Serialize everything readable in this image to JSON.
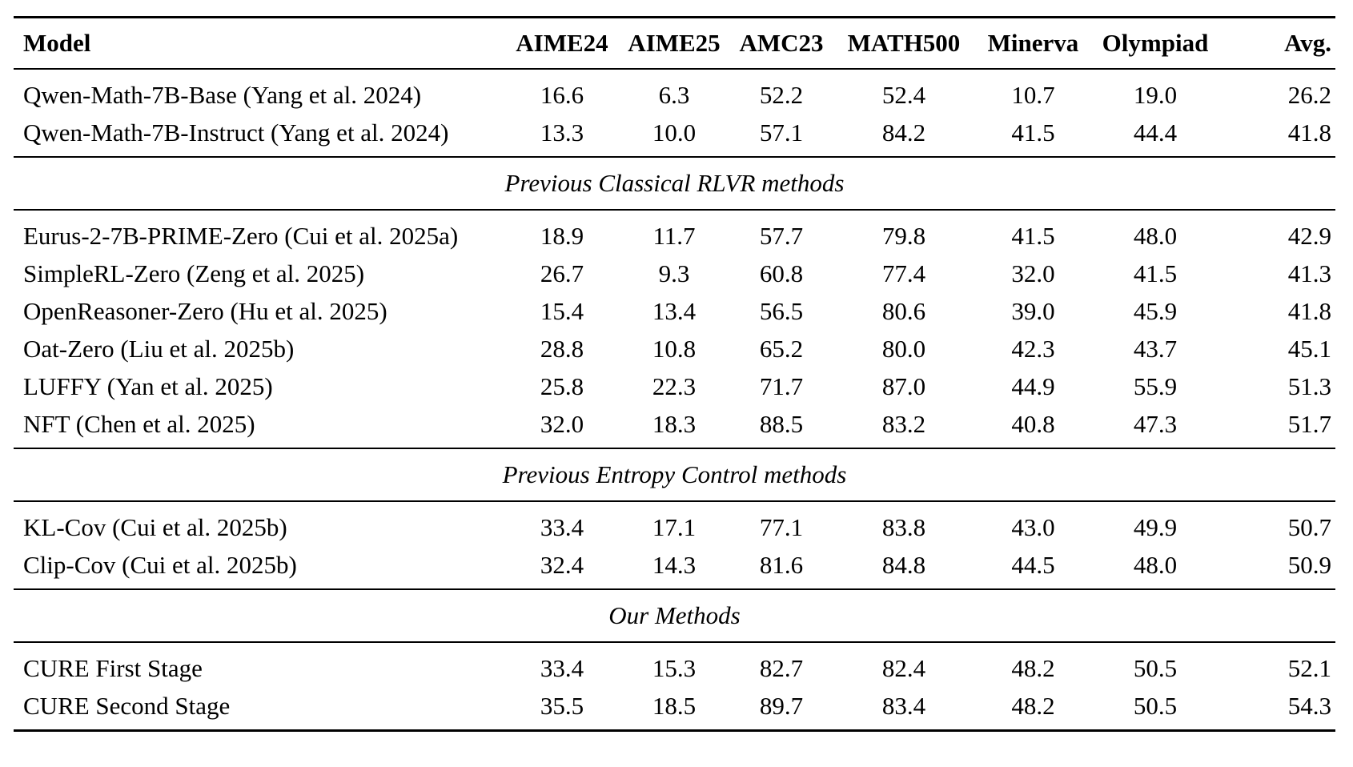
{
  "table": {
    "headers": [
      "Model",
      "AIME24",
      "AIME25",
      "AMC23",
      "MATH500",
      "Minerva",
      "Olympiad",
      "Avg."
    ],
    "groups": [
      {
        "section": "",
        "rows": [
          {
            "model": "Qwen-Math-7B-Base (Yang et al. 2024)",
            "values": [
              "16.6",
              "6.3",
              "52.2",
              "52.4",
              "10.7",
              "19.0",
              "26.2"
            ]
          },
          {
            "model": "Qwen-Math-7B-Instruct (Yang et al. 2024)",
            "values": [
              "13.3",
              "10.0",
              "57.1",
              "84.2",
              "41.5",
              "44.4",
              "41.8"
            ]
          }
        ]
      },
      {
        "section": "Previous Classical RLVR methods",
        "rows": [
          {
            "model": "Eurus-2-7B-PRIME-Zero (Cui et al. 2025a)",
            "values": [
              "18.9",
              "11.7",
              "57.7",
              "79.8",
              "41.5",
              "48.0",
              "42.9"
            ]
          },
          {
            "model": "SimpleRL-Zero (Zeng et al. 2025)",
            "values": [
              "26.7",
              "9.3",
              "60.8",
              "77.4",
              "32.0",
              "41.5",
              "41.3"
            ]
          },
          {
            "model": "OpenReasoner-Zero (Hu et al. 2025)",
            "values": [
              "15.4",
              "13.4",
              "56.5",
              "80.6",
              "39.0",
              "45.9",
              "41.8"
            ]
          },
          {
            "model": "Oat-Zero (Liu et al. 2025b)",
            "values": [
              "28.8",
              "10.8",
              "65.2",
              "80.0",
              "42.3",
              "43.7",
              "45.1"
            ]
          },
          {
            "model": "LUFFY (Yan et al. 2025)",
            "values": [
              "25.8",
              "22.3",
              "71.7",
              "87.0",
              "44.9",
              "55.9",
              "51.3"
            ]
          },
          {
            "model": "NFT (Chen et al. 2025)",
            "values": [
              "32.0",
              "18.3",
              "88.5",
              "83.2",
              "40.8",
              "47.3",
              "51.7"
            ]
          }
        ]
      },
      {
        "section": "Previous Entropy Control methods",
        "rows": [
          {
            "model": "KL-Cov (Cui et al. 2025b)",
            "values": [
              "33.4",
              "17.1",
              "77.1",
              "83.8",
              "43.0",
              "49.9",
              "50.7"
            ]
          },
          {
            "model": "Clip-Cov (Cui et al. 2025b)",
            "values": [
              "32.4",
              "14.3",
              "81.6",
              "84.8",
              "44.5",
              "48.0",
              "50.9"
            ]
          }
        ]
      },
      {
        "section": "Our Methods",
        "rows": [
          {
            "model": "CURE First Stage",
            "values": [
              "33.4",
              "15.3",
              "82.7",
              "82.4",
              "48.2",
              "50.5",
              "52.1"
            ]
          },
          {
            "model": "CURE Second Stage",
            "values": [
              "35.5",
              "18.5",
              "89.7",
              "83.4",
              "48.2",
              "50.5",
              "54.3"
            ]
          }
        ]
      }
    ]
  }
}
